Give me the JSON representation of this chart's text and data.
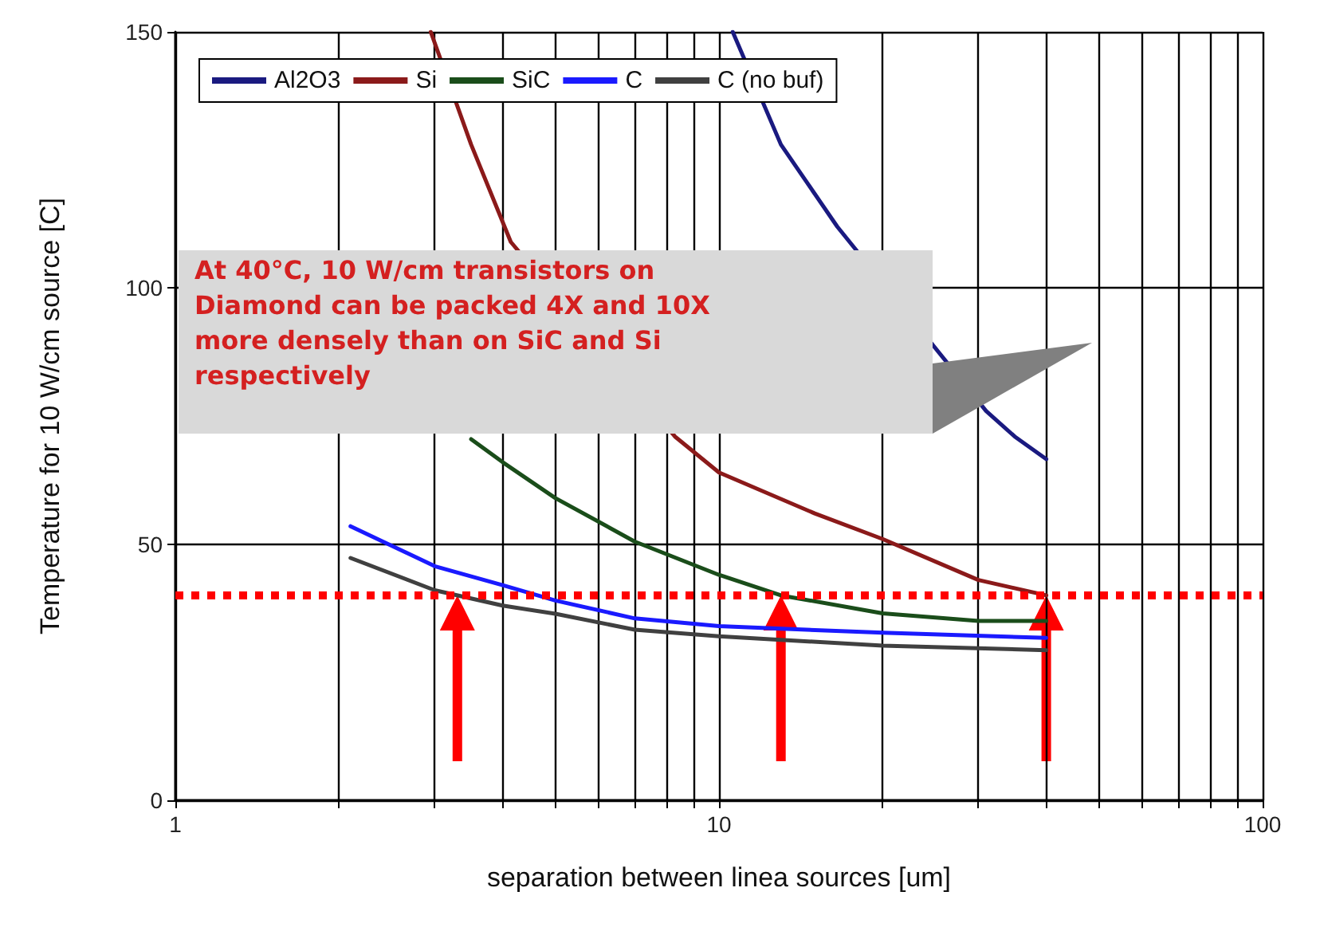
{
  "chart_data": {
    "type": "line",
    "xlabel": "separation between linea sources [um]",
    "ylabel": "Temperature for 10 W/cm source [C]",
    "log": "x",
    "xlim": [
      1,
      100
    ],
    "xticks": [
      1,
      {
        "value": 2,
        "label": null
      },
      {
        "value": 3,
        "label": null
      },
      {
        "value": 4,
        "label": null
      },
      {
        "value": 5,
        "label": null
      },
      {
        "value": 6,
        "label": null
      },
      {
        "value": 7,
        "label": null
      },
      {
        "value": 8,
        "label": null
      },
      {
        "value": 9,
        "label": null
      },
      10,
      {
        "value": 20,
        "label": null
      },
      {
        "value": 30,
        "label": null
      },
      {
        "value": 40,
        "label": null
      },
      {
        "value": 50,
        "label": null
      },
      {
        "value": 60,
        "label": null
      },
      {
        "value": 70,
        "label": null
      },
      {
        "value": 80,
        "label": null
      },
      {
        "value": 90,
        "label": null
      },
      100
    ],
    "ylim": [
      0,
      150
    ],
    "yticks": [
      0,
      50,
      100,
      150
    ],
    "grid": true,
    "legend": "top left",
    "marker": "none",
    "line_style": "solid",
    "series": [
      {
        "name": "Al2O3",
        "color": "#1a1a80",
        "x": [
          10.6,
          13,
          16.5,
          31,
          35,
          40
        ],
        "values": [
          150,
          128,
          112,
          76,
          71,
          66.6
        ]
      },
      {
        "name": "Si",
        "color": "#8b1a1a",
        "x": [
          2.95,
          3.5,
          4.14,
          8.3,
          10,
          15,
          20,
          30,
          40
        ],
        "values": [
          150,
          128,
          109,
          71,
          64,
          56,
          51,
          43,
          40
        ]
      },
      {
        "name": "SiC",
        "color": "#1a4d1a",
        "x": [
          3.5,
          4,
          5,
          7,
          10,
          13,
          20,
          30,
          40
        ],
        "values": [
          70.5,
          66,
          59,
          50.5,
          44,
          40,
          36.5,
          35,
          35
        ]
      },
      {
        "name": "C",
        "color": "#1a1aff",
        "x": [
          2.1,
          3,
          4,
          5,
          7,
          10,
          20,
          40
        ],
        "values": [
          53.5,
          45.7,
          42,
          39,
          35.5,
          34,
          32.7,
          31.7
        ]
      },
      {
        "name": "C (no buf)",
        "color": "#404040",
        "x": [
          2.1,
          3,
          4,
          5,
          7,
          10,
          20,
          40
        ],
        "values": [
          47.3,
          41,
          38,
          36.4,
          33.3,
          32,
          30.2,
          29.3
        ]
      }
    ],
    "ref_lines": [
      {
        "axis": "y",
        "value": 40,
        "color": "#ff0000",
        "line_style": "dotted"
      }
    ],
    "annotations": [
      "At 40°C, 10 W/cm transistors on Diamond can be packed 4X and 10X more densely than on SiC and Si respectively"
    ]
  }
}
